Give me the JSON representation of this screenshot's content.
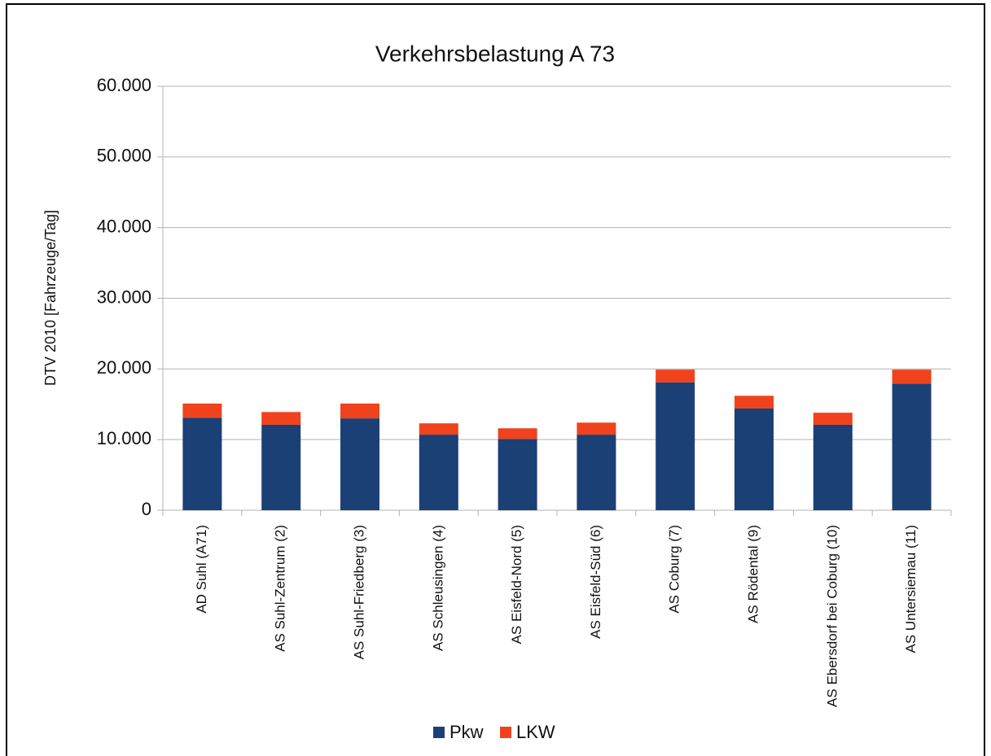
{
  "chart_data": {
    "type": "bar",
    "stacked": true,
    "title": "Verkehrsbelastung A 73",
    "y_label": "DTV 2010 [Fahrzeuge/Tag]",
    "categories": [
      "AD Suhl (A71)",
      "AS Suhl-Zentrum (2)",
      "AS Suhl-Friedberg (3)",
      "AS Schleusingen (4)",
      "AS Eisfeld-Nord (5)",
      "AS Eisfeld-Süd (6)",
      "AS Coburg (7)",
      "AS Rödental (9)",
      "AS Ebersdorf bei Coburg (10)",
      "AS Untersiemau (11)"
    ],
    "series": [
      {
        "name": "Pkw",
        "color": "#1b4076",
        "values": [
          13100,
          12100,
          13000,
          10700,
          10100,
          10700,
          18100,
          14400,
          12100,
          17900
        ]
      },
      {
        "name": "LKW",
        "color": "#f0421c",
        "values": [
          2000,
          1800,
          2100,
          1600,
          1500,
          1700,
          1800,
          1800,
          1700,
          2000
        ]
      }
    ],
    "ylim": [
      0,
      60000
    ],
    "yticks": [
      0,
      {
        "value": 10000,
        "label": "10.000"
      },
      {
        "value": 20000,
        "label": "20.000"
      },
      {
        "value": 30000,
        "label": "30.000"
      },
      {
        "value": 40000,
        "label": "40.000"
      },
      {
        "value": 50000,
        "label": "50.000"
      },
      {
        "value": 60000,
        "label": "60.000"
      }
    ],
    "grid": true,
    "legend": "bottom"
  }
}
